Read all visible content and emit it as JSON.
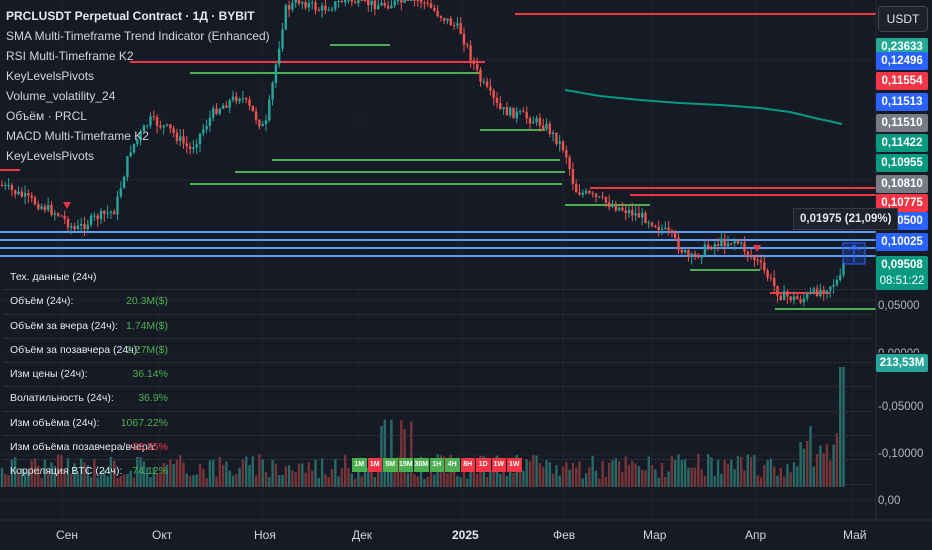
{
  "header": {
    "title": "PRCLUSDT Perpetual Contract · 1Д · BYBIT",
    "indicators": [
      "SMA Multi-Timeframe Trend Indicator (Enhanced)",
      "RSI Multi-Timeframe K2",
      "KeyLevelsPivots",
      "Volume_volatility_24",
      "Объём · PRCL",
      "MACD Multi-Timeframe K2",
      "KeyLevelsPivots"
    ]
  },
  "currency_button": "USDT",
  "price_labels": [
    {
      "text": "0,23633",
      "color": "#22ab94"
    },
    {
      "text": "0,12496",
      "color": "#2962ff"
    },
    {
      "text": "0,11554",
      "color": "#f23645"
    },
    {
      "text": "0,11513",
      "color": "#2962ff"
    },
    {
      "text": "0,11510",
      "color": "#787b86"
    },
    {
      "text": "0,11422",
      "color": "#089981"
    },
    {
      "text": "0,10955",
      "color": "#089981"
    },
    {
      "text": "0,10810",
      "color": "#787b86"
    },
    {
      "text": "0,10775",
      "color": "#f23645"
    },
    {
      "text": "0,10500",
      "color": "#2962ff"
    },
    {
      "text": "0,10025",
      "color": "#2962ff"
    },
    {
      "text": "0,09508",
      "color": "#089981"
    }
  ],
  "countdown": "08:51:22",
  "axis_ticks": [
    "0,05000",
    "0,00000",
    "-0,05000",
    "-0,10000",
    "0,00"
  ],
  "volume_label": "213,53M",
  "measure_tooltip": "0,01975 (21,09%)",
  "tech_table": {
    "title": "Тех. данные (24ч)",
    "rows": [
      {
        "label": "Объём (24ч):",
        "value": "20.3M($)",
        "color": "#4caf50"
      },
      {
        "label": "Объём за вчера (24ч):",
        "value": "1.74M($)",
        "color": "#4caf50"
      },
      {
        "label": "Объём за позавчера (24ч):",
        "value": "2.27M($)",
        "color": "#4caf50"
      },
      {
        "label": "Изм цены (24ч):",
        "value": "36.14%",
        "color": "#4caf50"
      },
      {
        "label": "Волатильность (24ч):",
        "value": "36.9%",
        "color": "#4caf50"
      },
      {
        "label": "Изм объёма (24ч):",
        "value": "1067.22%",
        "color": "#4caf50"
      },
      {
        "label": "Изм объёма позавчера/вчера:",
        "value": "-23.35%",
        "color": "#f23645"
      },
      {
        "label": "Корреляция BTC (24ч):",
        "value": "74.12%",
        "color": "#4caf50"
      }
    ]
  },
  "timeframes": [
    {
      "label": "1M",
      "color": "#4caf50"
    },
    {
      "label": "1M",
      "color": "#f23645"
    },
    {
      "label": "5M",
      "color": "#4caf50"
    },
    {
      "label": "15M",
      "color": "#4caf50"
    },
    {
      "label": "30M",
      "color": "#4caf50"
    },
    {
      "label": "1H",
      "color": "#4caf50"
    },
    {
      "label": "4H",
      "color": "#4caf50"
    },
    {
      "label": "8H",
      "color": "#f23645"
    },
    {
      "label": "1D",
      "color": "#f23645"
    },
    {
      "label": "1W",
      "color": "#f23645"
    },
    {
      "label": "1W",
      "color": "#f23645"
    }
  ],
  "x_axis": [
    {
      "label": "Сен",
      "bold": false
    },
    {
      "label": "Окт",
      "bold": false
    },
    {
      "label": "Ноя",
      "bold": false
    },
    {
      "label": "Дек",
      "bold": false
    },
    {
      "label": "2025",
      "bold": true
    },
    {
      "label": "Фев",
      "bold": false
    },
    {
      "label": "Мар",
      "bold": false
    },
    {
      "label": "Апр",
      "bold": false
    },
    {
      "label": "Май",
      "bold": false
    }
  ],
  "colors": {
    "up": "#26a69a",
    "down": "#ef5350",
    "level_green": "#4caf50",
    "level_red": "#f23645",
    "level_blue": "#2962ff",
    "sma": "#089981"
  }
}
